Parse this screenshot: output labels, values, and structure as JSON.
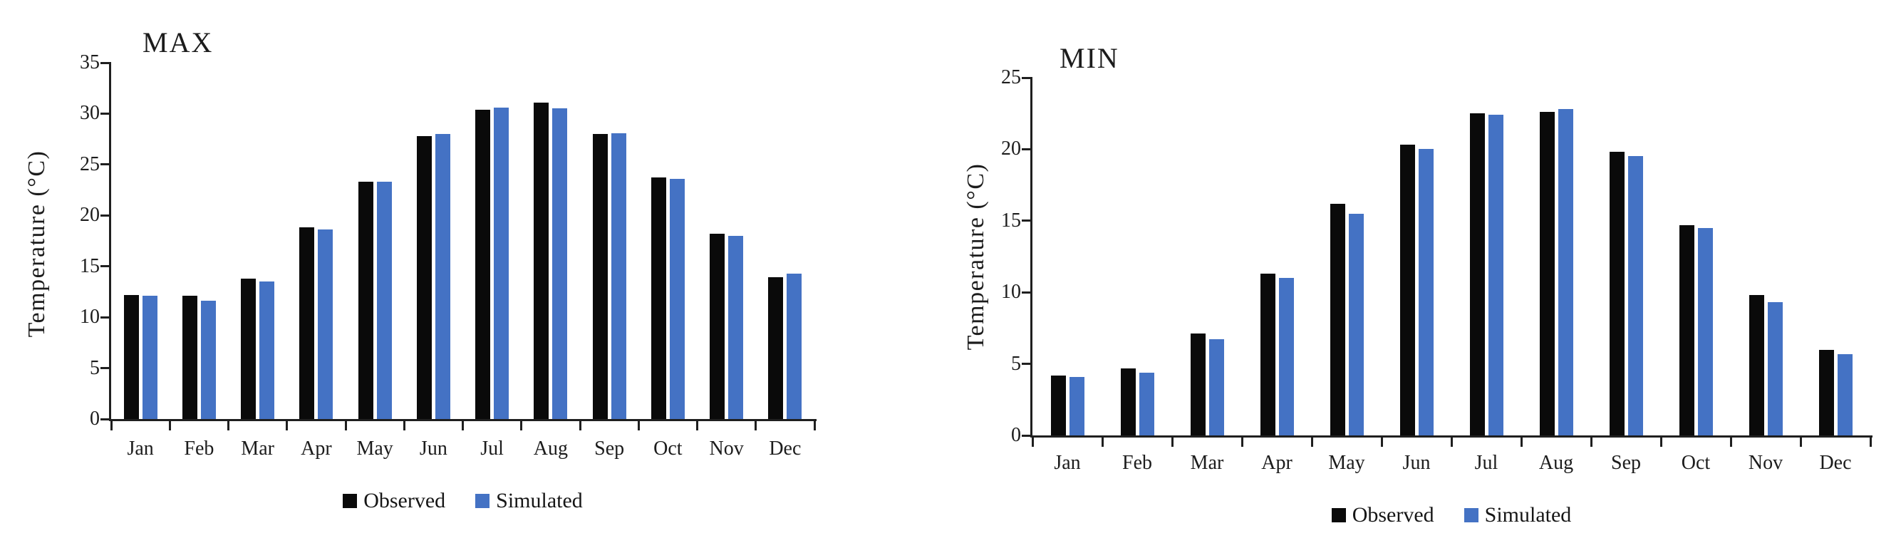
{
  "figure": {
    "description": "Two side-by-side bar charts comparing observed and simulated monthly temperatures",
    "legend": {
      "observed_label": "Observed",
      "simulated_label": "Simulated"
    },
    "colors": {
      "observed": "#0a0a0a",
      "simulated": "#4472c4",
      "axis": "#1f1f1f",
      "background": "#ffffff"
    }
  },
  "chart_data": [
    {
      "type": "bar",
      "title": "MAX",
      "xlabel": "",
      "ylabel": "Temperature (°C)",
      "categories": [
        "Jan",
        "Feb",
        "Mar",
        "Apr",
        "May",
        "Jun",
        "Jul",
        "Aug",
        "Sep",
        "Oct",
        "Nov",
        "Dec"
      ],
      "series": [
        {
          "name": "Observed",
          "color": "#0a0a0a",
          "values": [
            12.2,
            12.1,
            13.8,
            18.8,
            23.3,
            27.8,
            30.4,
            31.1,
            28.0,
            23.7,
            18.2,
            13.9
          ]
        },
        {
          "name": "Simulated",
          "color": "#4472c4",
          "values": [
            12.1,
            11.6,
            13.5,
            18.6,
            23.3,
            28.0,
            30.6,
            30.5,
            28.1,
            23.6,
            18.0,
            14.3
          ]
        }
      ],
      "ylim": [
        0,
        35
      ],
      "yticks": [
        0,
        5,
        10,
        15,
        20,
        25,
        30,
        35
      ],
      "grid": false,
      "legend_position": "bottom"
    },
    {
      "type": "bar",
      "title": "MIN",
      "xlabel": "",
      "ylabel": "Temperature (°C)",
      "categories": [
        "Jan",
        "Feb",
        "Mar",
        "Apr",
        "May",
        "Jun",
        "Jul",
        "Aug",
        "Sep",
        "Oct",
        "Nov",
        "Dec"
      ],
      "series": [
        {
          "name": "Observed",
          "color": "#0a0a0a",
          "values": [
            4.2,
            4.7,
            7.1,
            11.3,
            16.2,
            20.3,
            22.5,
            22.6,
            19.8,
            14.7,
            9.8,
            6.0
          ]
        },
        {
          "name": "Simulated",
          "color": "#4472c4",
          "values": [
            4.1,
            4.4,
            6.7,
            11.0,
            15.5,
            20.0,
            22.4,
            22.8,
            19.5,
            14.5,
            9.3,
            5.7
          ]
        }
      ],
      "ylim": [
        0,
        25
      ],
      "yticks": [
        0,
        5,
        10,
        15,
        20,
        25
      ],
      "grid": false,
      "legend_position": "bottom"
    }
  ]
}
